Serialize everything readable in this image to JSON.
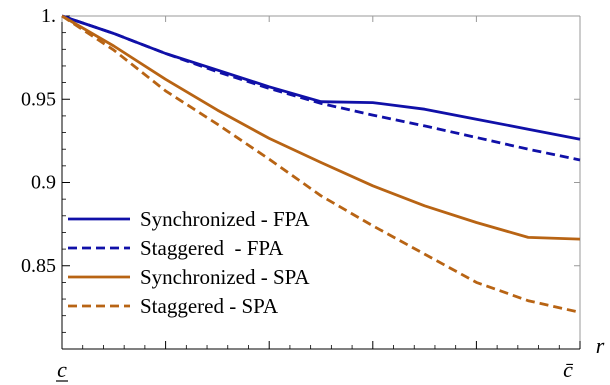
{
  "chart_data": {
    "type": "line",
    "title": "",
    "xlabel": "r",
    "ylabel": "",
    "x_tick_labels": [
      "c",
      "c̄"
    ],
    "x_tick_underline_first": true,
    "x": [
      0,
      0.1,
      0.2,
      0.3,
      0.4,
      0.5,
      0.6,
      0.7,
      0.8,
      0.9,
      1.0
    ],
    "xlim": [
      0,
      1
    ],
    "ylim": [
      0.8,
      1.0
    ],
    "y_ticks": [
      1.0,
      0.95,
      0.9,
      0.85
    ],
    "y_tick_labels": [
      "1.",
      "0.95",
      "0.9",
      "0.85"
    ],
    "grid": false,
    "legend_position": "bottom-left",
    "series": [
      {
        "name": "Synchronized - FPA",
        "color": "#1010a8",
        "dash": "solid",
        "values": [
          1.0,
          0.9895,
          0.9775,
          0.9675,
          0.9575,
          0.9485,
          0.948,
          0.944,
          0.938,
          0.932,
          0.926
        ]
      },
      {
        "name": "Staggered  - FPA",
        "color": "#1010a8",
        "dash": "dashed",
        "values": [
          1.0,
          0.9895,
          0.9775,
          0.9665,
          0.9565,
          0.9475,
          0.9405,
          0.934,
          0.927,
          0.92,
          0.9135
        ]
      },
      {
        "name": "Synchronized - SPA",
        "color": "#b86414",
        "dash": "solid",
        "values": [
          1.0,
          0.982,
          0.962,
          0.9435,
          0.9265,
          0.912,
          0.898,
          0.886,
          0.876,
          0.867,
          0.866
        ]
      },
      {
        "name": "Staggered - SPA",
        "color": "#b86414",
        "dash": "dashed",
        "values": [
          1.0,
          0.9795,
          0.955,
          0.935,
          0.914,
          0.892,
          0.874,
          0.857,
          0.84,
          0.829,
          0.822
        ]
      }
    ]
  }
}
